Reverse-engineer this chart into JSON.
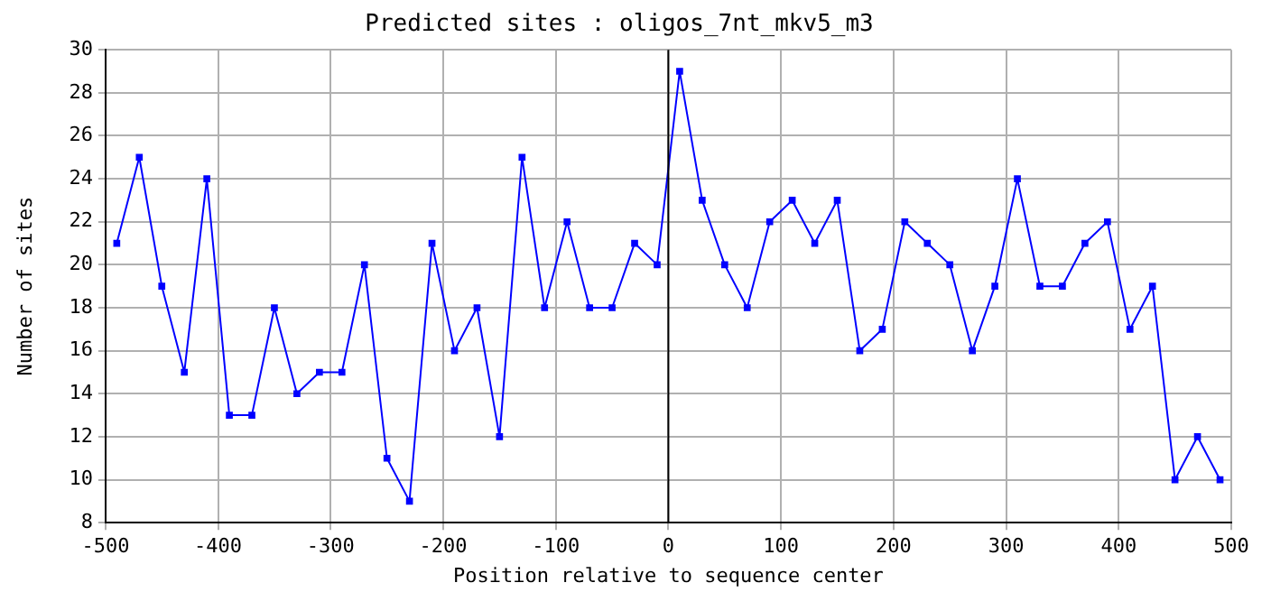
{
  "chart_data": {
    "type": "line",
    "title": "Predicted sites : oligos_7nt_mkv5_m3",
    "xlabel": "Position relative to sequence center",
    "ylabel": "Number of sites",
    "x": [
      -490,
      -470,
      -450,
      -430,
      -410,
      -390,
      -370,
      -350,
      -330,
      -310,
      -290,
      -270,
      -250,
      -230,
      -210,
      -190,
      -170,
      -150,
      -130,
      -110,
      -90,
      -70,
      -50,
      -30,
      -10,
      10,
      30,
      50,
      70,
      90,
      110,
      130,
      150,
      170,
      190,
      210,
      230,
      250,
      270,
      290,
      310,
      330,
      350,
      370,
      390,
      410,
      430,
      450,
      470,
      490
    ],
    "series": [
      {
        "color": "#0000ff",
        "values": [
          21,
          25,
          19,
          15,
          24,
          13,
          13,
          18,
          14,
          15,
          15,
          20,
          11,
          9,
          21,
          16,
          18,
          12,
          25,
          18,
          22,
          18,
          18,
          21,
          20,
          29,
          23,
          20,
          18,
          22,
          23,
          21,
          23,
          16,
          17,
          22,
          21,
          20,
          16,
          19,
          24,
          19,
          19,
          21,
          22,
          17,
          19,
          10,
          12,
          10
        ]
      }
    ],
    "xlim": [
      -500,
      500
    ],
    "xticks": [
      -500,
      -400,
      -300,
      -200,
      -100,
      0,
      100,
      200,
      300,
      400,
      500
    ],
    "ylim": [
      8,
      30
    ],
    "yticks": [
      8,
      10,
      12,
      14,
      16,
      18,
      20,
      22,
      24,
      26,
      28,
      30
    ],
    "ref_lines": [
      {
        "axis": "x",
        "value": 0,
        "color": "#000000"
      }
    ],
    "grid": true,
    "legend": false,
    "marker": "square",
    "line_style": "solid"
  }
}
